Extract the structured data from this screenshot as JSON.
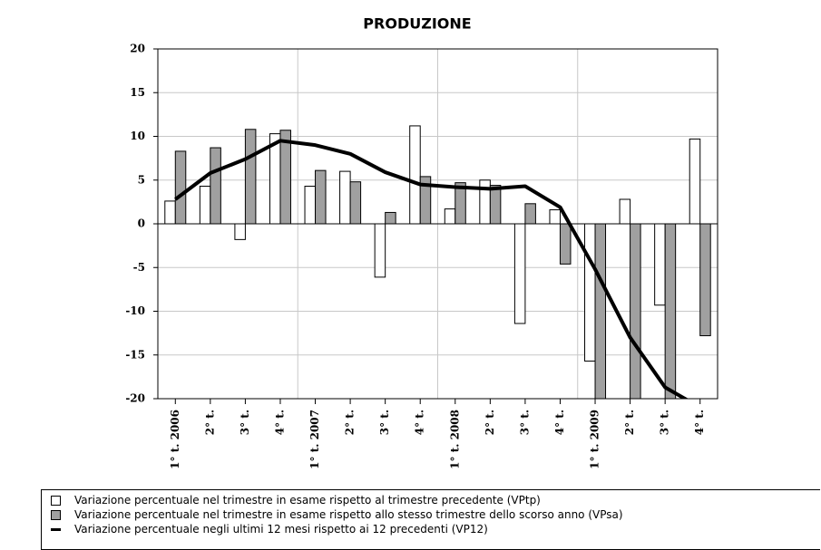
{
  "chart_data": {
    "type": "bar",
    "title": "PRODUZIONE",
    "categories": [
      "1° t. 2006",
      "2° t.",
      "3° t.",
      "4° t.",
      "1° t. 2007",
      "2° t.",
      "3° t.",
      "4° t.",
      "1° t. 2008",
      "2° t.",
      "3° t.",
      "4° t.",
      "1° t. 2009",
      "2° t.",
      "3° t.",
      "4° t."
    ],
    "series": [
      {
        "name": "Variazione percentuale nel trimestre in esame rispetto al trimestre precedente (VPtp)",
        "type": "bar",
        "color": "#ffffff",
        "values": [
          2.6,
          4.3,
          -1.8,
          10.3,
          4.3,
          6.0,
          -6.1,
          11.2,
          1.7,
          5.0,
          -11.4,
          1.6,
          -15.7,
          2.8,
          -9.3,
          9.7
        ]
      },
      {
        "name": "Variazione percentuale nel trimestre in esame rispetto allo stesso trimestre dello scorso anno (VPsa)",
        "type": "bar",
        "color": "#a0a0a0",
        "values": [
          8.3,
          8.7,
          10.8,
          10.7,
          6.1,
          4.8,
          1.3,
          5.4,
          4.7,
          4.4,
          2.3,
          -4.6,
          -20,
          -20,
          -20,
          -12.8
        ]
      },
      {
        "name": "Variazione percentuale negli ultimi 12 mesi rispetto ai 12 precedenti (VP12)",
        "type": "line",
        "color": "#000000",
        "values": [
          2.8,
          5.8,
          7.4,
          9.5,
          9.0,
          8.0,
          5.9,
          4.5,
          4.2,
          4.0,
          4.3,
          1.9,
          -5.2,
          -13.0,
          -18.7,
          -21
        ]
      }
    ],
    "ylim": [
      -20,
      20
    ],
    "yticks": [
      -20,
      -15,
      -10,
      -5,
      0,
      5,
      10,
      15,
      20
    ],
    "grid": true
  }
}
